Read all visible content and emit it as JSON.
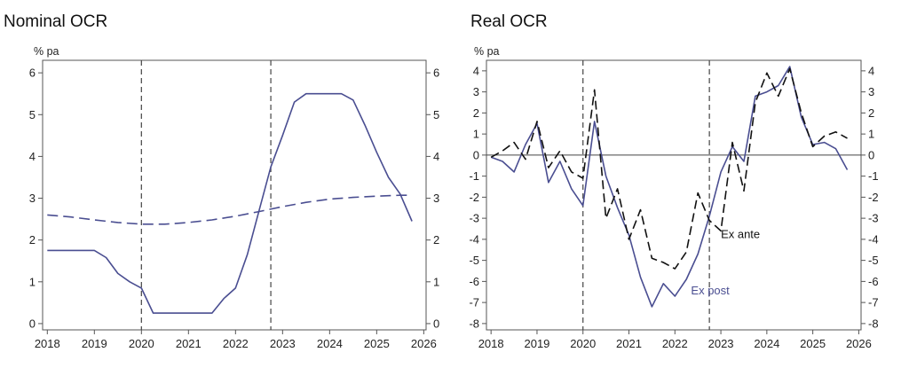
{
  "chart_data": [
    {
      "type": "line",
      "title": "Nominal OCR",
      "unit_label": "% pa",
      "xlim": [
        2017.9,
        2026.05
      ],
      "ylim": [
        -0.15,
        6.3
      ],
      "x_ticks": [
        2018,
        2019,
        2020,
        2021,
        2022,
        2023,
        2024,
        2025,
        2026
      ],
      "x_tick_labels": [
        "2018",
        "2019",
        "2020",
        "2021",
        "2022",
        "2023",
        "2024",
        "2025",
        "2026"
      ],
      "y_ticks": [
        0,
        1,
        2,
        3,
        4,
        5,
        6
      ],
      "y_tick_labels": [
        "0",
        "1",
        "2",
        "3",
        "4",
        "5",
        "6"
      ],
      "right_axis": true,
      "grid": false,
      "vertical_lines": [
        2020,
        2022.75
      ],
      "colors": {
        "solid": "#4a4e91",
        "dashed": "#4a4e91",
        "axis": "#555555",
        "reference": "#444444"
      },
      "series": [
        {
          "style": "solid",
          "x": [
            2018.0,
            2019.0,
            2019.25,
            2019.5,
            2019.75,
            2020.0,
            2020.25,
            2020.5,
            2020.75,
            2021.0,
            2021.25,
            2021.5,
            2021.75,
            2022.0,
            2022.25,
            2022.5,
            2022.75,
            2023.0,
            2023.25,
            2023.5,
            2023.75,
            2024.0,
            2024.25,
            2024.5,
            2024.75,
            2025.0,
            2025.25,
            2025.5,
            2025.75
          ],
          "y": [
            1.75,
            1.75,
            1.58,
            1.2,
            1.0,
            0.85,
            0.25,
            0.25,
            0.25,
            0.25,
            0.25,
            0.25,
            0.6,
            0.85,
            1.65,
            2.7,
            3.75,
            4.5,
            5.3,
            5.5,
            5.5,
            5.5,
            5.5,
            5.35,
            4.75,
            4.1,
            3.5,
            3.1,
            2.45
          ]
        },
        {
          "style": "dashed",
          "x": [
            2018.0,
            2018.5,
            2019.0,
            2019.5,
            2020.0,
            2020.5,
            2021.0,
            2021.5,
            2022.0,
            2022.5,
            2023.0,
            2023.5,
            2024.0,
            2024.5,
            2025.0,
            2025.5,
            2025.75
          ],
          "y": [
            2.6,
            2.55,
            2.48,
            2.42,
            2.38,
            2.38,
            2.42,
            2.48,
            2.57,
            2.68,
            2.8,
            2.9,
            2.98,
            3.02,
            3.05,
            3.07,
            3.07
          ]
        }
      ]
    },
    {
      "type": "line",
      "title": "Real OCR",
      "unit_label": "% pa",
      "xlim": [
        2017.9,
        2026.05
      ],
      "ylim": [
        -8.3,
        4.5
      ],
      "x_ticks": [
        2018,
        2019,
        2020,
        2021,
        2022,
        2023,
        2024,
        2025,
        2026
      ],
      "x_tick_labels": [
        "2018",
        "2019",
        "2020",
        "2021",
        "2022",
        "2023",
        "2024",
        "2025",
        "2026"
      ],
      "y_ticks": [
        4,
        3,
        2,
        1,
        0,
        -1,
        -2,
        -3,
        -4,
        -5,
        -6,
        -7,
        -8
      ],
      "y_tick_labels": [
        "4",
        "3",
        "2",
        "1",
        "0",
        "-1",
        "-2",
        "-3",
        "-4",
        "-5",
        "-6",
        "-7",
        "-8"
      ],
      "right_axis": true,
      "grid": false,
      "zero_line": true,
      "vertical_lines": [
        2020,
        2022.75
      ],
      "colors": {
        "ex_post": "#4a4e91",
        "ex_ante": "#111111",
        "axis": "#555555",
        "reference": "#444444"
      },
      "series": [
        {
          "name": "Ex post",
          "style": "solid",
          "x": [
            2018.0,
            2018.25,
            2018.5,
            2018.75,
            2019.0,
            2019.25,
            2019.5,
            2019.75,
            2020.0,
            2020.25,
            2020.5,
            2020.75,
            2021.0,
            2021.25,
            2021.5,
            2021.75,
            2022.0,
            2022.25,
            2022.5,
            2022.75,
            2023.0,
            2023.25,
            2023.5,
            2023.75,
            2024.0,
            2024.25,
            2024.5,
            2024.75,
            2025.0,
            2025.25,
            2025.5,
            2025.75
          ],
          "y": [
            -0.1,
            -0.3,
            -0.8,
            0.5,
            1.5,
            -1.3,
            -0.3,
            -1.6,
            -2.4,
            1.6,
            -1.0,
            -2.5,
            -3.8,
            -5.8,
            -7.2,
            -6.1,
            -6.7,
            -5.9,
            -4.7,
            -2.9,
            -0.8,
            0.4,
            -0.3,
            2.8,
            3.0,
            3.3,
            4.2,
            1.8,
            0.5,
            0.6,
            0.3,
            -0.7
          ]
        },
        {
          "name": "Ex ante",
          "style": "dashed",
          "x": [
            2018.0,
            2018.25,
            2018.5,
            2018.75,
            2019.0,
            2019.25,
            2019.5,
            2019.75,
            2020.0,
            2020.25,
            2020.5,
            2020.75,
            2021.0,
            2021.25,
            2021.5,
            2021.75,
            2022.0,
            2022.25,
            2022.5,
            2022.75,
            2023.0,
            2023.25,
            2023.5,
            2023.75,
            2024.0,
            2024.25,
            2024.5,
            2024.75,
            2025.0,
            2025.25,
            2025.5,
            2025.75
          ],
          "y": [
            -0.1,
            0.2,
            0.6,
            -0.2,
            1.6,
            -0.6,
            0.2,
            -0.8,
            -1.1,
            3.1,
            -3.0,
            -1.6,
            -4.0,
            -2.6,
            -4.9,
            -5.1,
            -5.4,
            -4.6,
            -1.8,
            -3.1,
            -3.6,
            0.6,
            -1.7,
            2.5,
            3.9,
            2.8,
            4.1,
            2.0,
            0.4,
            0.9,
            1.1,
            0.8
          ]
        }
      ],
      "annotations": [
        {
          "text": "Ex ante",
          "x": 2023.0,
          "y": -3.6,
          "series": "Ex ante"
        },
        {
          "text": "Ex post",
          "x": 2022.35,
          "y": -6.2,
          "series": "Ex post"
        }
      ]
    }
  ]
}
